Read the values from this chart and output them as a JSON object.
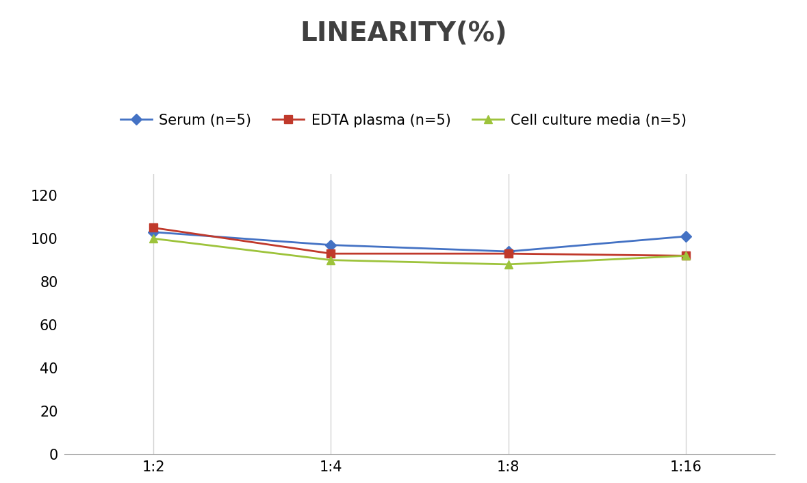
{
  "title": "LINEARITY(%)",
  "x_labels": [
    "1:2",
    "1:4",
    "1:8",
    "1:16"
  ],
  "x_positions": [
    0,
    1,
    2,
    3
  ],
  "series": [
    {
      "label": "Serum (n=5)",
      "values": [
        103,
        97,
        94,
        101
      ],
      "color": "#4472C4",
      "marker": "D",
      "markersize": 8,
      "linewidth": 2.0
    },
    {
      "label": "EDTA plasma (n=5)",
      "values": [
        105,
        93,
        93,
        92
      ],
      "color": "#C0392B",
      "marker": "s",
      "markersize": 8,
      "linewidth": 2.0
    },
    {
      "label": "Cell culture media (n=5)",
      "values": [
        100,
        90,
        88,
        92
      ],
      "color": "#9DC33B",
      "marker": "^",
      "markersize": 8,
      "linewidth": 2.0
    }
  ],
  "ylim": [
    0,
    130
  ],
  "yticks": [
    0,
    20,
    40,
    60,
    80,
    100,
    120
  ],
  "background_color": "#ffffff",
  "grid_color": "#d3d3d3",
  "title_fontsize": 28,
  "tick_fontsize": 15,
  "legend_fontsize": 15,
  "title_color": "#404040"
}
